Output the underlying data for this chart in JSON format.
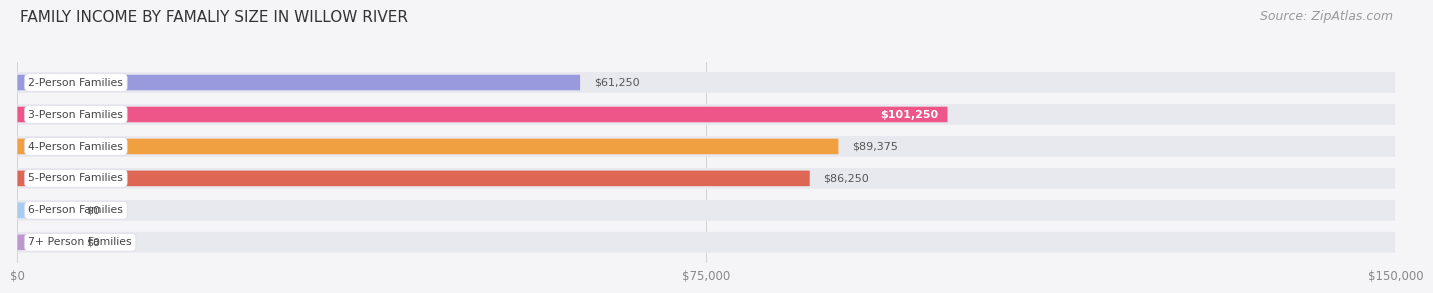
{
  "title": "FAMILY INCOME BY FAMALIY SIZE IN WILLOW RIVER",
  "source": "Source: ZipAtlas.com",
  "categories": [
    "2-Person Families",
    "3-Person Families",
    "4-Person Families",
    "5-Person Families",
    "6-Person Families",
    "7+ Person Families"
  ],
  "values": [
    61250,
    101250,
    89375,
    86250,
    0,
    0
  ],
  "bar_colors": [
    "#9999dd",
    "#ee5588",
    "#f0a040",
    "#dd6655",
    "#aaccee",
    "#bb99cc"
  ],
  "bar_bg_color": "#e8e8ef",
  "value_labels": [
    "$61,250",
    "$101,250",
    "$89,375",
    "$86,250",
    "$0",
    "$0"
  ],
  "value_label_inside": [
    false,
    true,
    false,
    false,
    false,
    false
  ],
  "xlim": [
    0,
    150000
  ],
  "xtick_values": [
    0,
    75000,
    150000
  ],
  "xtick_labels": [
    "$0",
    "$75,000",
    "$150,000"
  ],
  "title_fontsize": 11,
  "source_fontsize": 9,
  "bar_height": 0.65,
  "background_color": "#f5f5f8",
  "label_box_color": "#ffffff",
  "zero_bar_width": 6000
}
